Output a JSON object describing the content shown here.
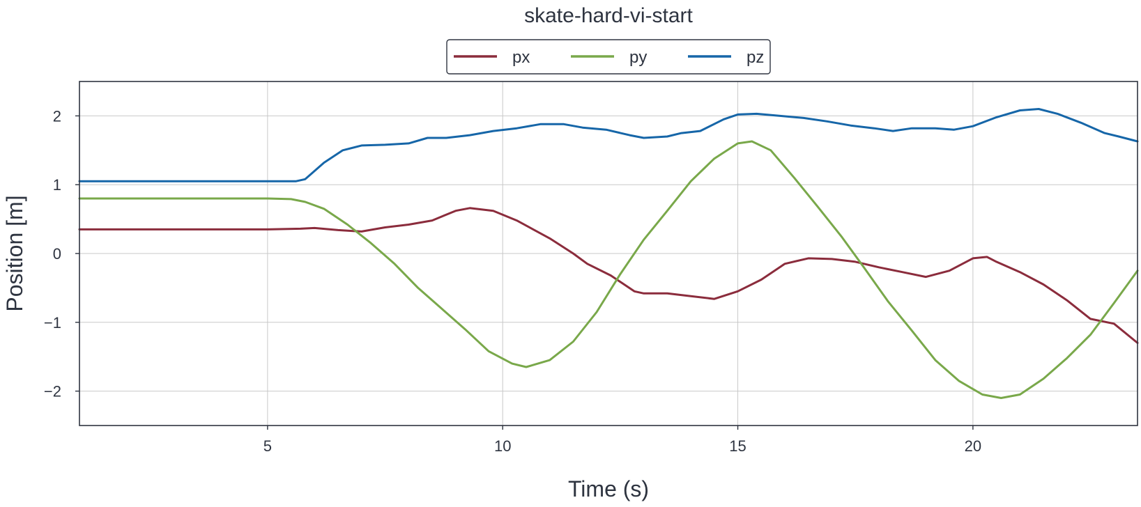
{
  "chart_data": {
    "type": "line",
    "title": "skate-hard-vi-start",
    "xlabel": "Time (s)",
    "ylabel": "Position [m]",
    "xlim": [
      1.0,
      23.5
    ],
    "ylim": [
      -2.5,
      2.5
    ],
    "xticks": [
      5,
      10,
      15,
      20
    ],
    "xtick_labels": [
      "5",
      "10",
      "15",
      "20"
    ],
    "yticks": [
      2,
      1,
      0,
      -1,
      -2
    ],
    "ytick_labels": [
      "2",
      "1",
      "0",
      "−1",
      "−2"
    ],
    "grid": true,
    "legend_position": "top-center",
    "series": [
      {
        "name": "px",
        "color": "#8b2c3c",
        "points": [
          [
            1.0,
            0.35
          ],
          [
            5.0,
            0.35
          ],
          [
            5.7,
            0.36
          ],
          [
            6.0,
            0.37
          ],
          [
            6.5,
            0.34
          ],
          [
            7.0,
            0.32
          ],
          [
            7.5,
            0.38
          ],
          [
            8.0,
            0.42
          ],
          [
            8.5,
            0.48
          ],
          [
            9.0,
            0.62
          ],
          [
            9.3,
            0.66
          ],
          [
            9.8,
            0.62
          ],
          [
            10.3,
            0.48
          ],
          [
            11.0,
            0.22
          ],
          [
            11.5,
            0.0
          ],
          [
            11.8,
            -0.15
          ],
          [
            12.3,
            -0.32
          ],
          [
            12.8,
            -0.55
          ],
          [
            13.0,
            -0.58
          ],
          [
            13.5,
            -0.58
          ],
          [
            14.0,
            -0.62
          ],
          [
            14.5,
            -0.66
          ],
          [
            15.0,
            -0.55
          ],
          [
            15.5,
            -0.38
          ],
          [
            16.0,
            -0.15
          ],
          [
            16.5,
            -0.07
          ],
          [
            17.0,
            -0.08
          ],
          [
            17.5,
            -0.12
          ],
          [
            18.0,
            -0.2
          ],
          [
            18.5,
            -0.27
          ],
          [
            19.0,
            -0.34
          ],
          [
            19.5,
            -0.25
          ],
          [
            20.0,
            -0.07
          ],
          [
            20.3,
            -0.05
          ],
          [
            20.5,
            -0.12
          ],
          [
            21.0,
            -0.27
          ],
          [
            21.5,
            -0.45
          ],
          [
            22.0,
            -0.68
          ],
          [
            22.5,
            -0.95
          ],
          [
            23.0,
            -1.02
          ],
          [
            23.5,
            -1.3
          ]
        ]
      },
      {
        "name": "py",
        "color": "#79a84a",
        "points": [
          [
            1.0,
            0.8
          ],
          [
            5.0,
            0.8
          ],
          [
            5.5,
            0.79
          ],
          [
            5.8,
            0.75
          ],
          [
            6.2,
            0.65
          ],
          [
            6.7,
            0.42
          ],
          [
            7.2,
            0.15
          ],
          [
            7.7,
            -0.15
          ],
          [
            8.2,
            -0.5
          ],
          [
            8.7,
            -0.8
          ],
          [
            9.2,
            -1.1
          ],
          [
            9.7,
            -1.42
          ],
          [
            10.2,
            -1.6
          ],
          [
            10.5,
            -1.65
          ],
          [
            11.0,
            -1.55
          ],
          [
            11.5,
            -1.28
          ],
          [
            12.0,
            -0.85
          ],
          [
            12.5,
            -0.3
          ],
          [
            13.0,
            0.2
          ],
          [
            13.5,
            0.62
          ],
          [
            14.0,
            1.05
          ],
          [
            14.5,
            1.38
          ],
          [
            15.0,
            1.6
          ],
          [
            15.3,
            1.63
          ],
          [
            15.7,
            1.5
          ],
          [
            16.2,
            1.1
          ],
          [
            16.7,
            0.68
          ],
          [
            17.2,
            0.25
          ],
          [
            17.7,
            -0.22
          ],
          [
            18.2,
            -0.7
          ],
          [
            18.7,
            -1.12
          ],
          [
            19.2,
            -1.55
          ],
          [
            19.7,
            -1.85
          ],
          [
            20.2,
            -2.05
          ],
          [
            20.6,
            -2.1
          ],
          [
            21.0,
            -2.05
          ],
          [
            21.5,
            -1.82
          ],
          [
            22.0,
            -1.52
          ],
          [
            22.5,
            -1.18
          ],
          [
            23.0,
            -0.72
          ],
          [
            23.5,
            -0.25
          ]
        ]
      },
      {
        "name": "pz",
        "color": "#1666a8",
        "points": [
          [
            1.0,
            1.05
          ],
          [
            5.6,
            1.05
          ],
          [
            5.8,
            1.08
          ],
          [
            6.2,
            1.32
          ],
          [
            6.6,
            1.5
          ],
          [
            7.0,
            1.57
          ],
          [
            7.5,
            1.58
          ],
          [
            8.0,
            1.6
          ],
          [
            8.4,
            1.68
          ],
          [
            8.8,
            1.68
          ],
          [
            9.3,
            1.72
          ],
          [
            9.8,
            1.78
          ],
          [
            10.3,
            1.82
          ],
          [
            10.8,
            1.88
          ],
          [
            11.3,
            1.88
          ],
          [
            11.7,
            1.83
          ],
          [
            12.2,
            1.8
          ],
          [
            12.7,
            1.72
          ],
          [
            13.0,
            1.68
          ],
          [
            13.5,
            1.7
          ],
          [
            13.8,
            1.75
          ],
          [
            14.2,
            1.78
          ],
          [
            14.7,
            1.95
          ],
          [
            15.0,
            2.02
          ],
          [
            15.4,
            2.03
          ],
          [
            15.9,
            2.0
          ],
          [
            16.4,
            1.97
          ],
          [
            16.9,
            1.92
          ],
          [
            17.4,
            1.86
          ],
          [
            17.9,
            1.82
          ],
          [
            18.3,
            1.78
          ],
          [
            18.7,
            1.82
          ],
          [
            19.2,
            1.82
          ],
          [
            19.6,
            1.8
          ],
          [
            20.0,
            1.85
          ],
          [
            20.5,
            1.98
          ],
          [
            21.0,
            2.08
          ],
          [
            21.4,
            2.1
          ],
          [
            21.8,
            2.03
          ],
          [
            22.3,
            1.9
          ],
          [
            22.8,
            1.75
          ],
          [
            23.1,
            1.7
          ],
          [
            23.5,
            1.63
          ]
        ]
      }
    ]
  }
}
